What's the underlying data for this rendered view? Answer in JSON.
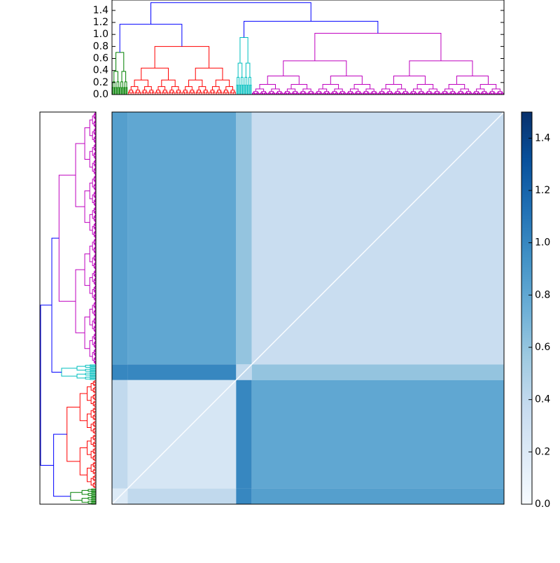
{
  "chart_data": {
    "type": "clustermap",
    "dendrogram": {
      "ylim": [
        0,
        1.55
      ],
      "yticks": [
        {
          "value": 0,
          "label": "0.0"
        },
        {
          "value": 0.2,
          "label": "0.2"
        },
        {
          "value": 0.4,
          "label": "0.4"
        },
        {
          "value": 0.6,
          "label": "0.6"
        },
        {
          "value": 0.8,
          "label": "0.8"
        },
        {
          "value": 1,
          "label": "1.0"
        },
        {
          "value": 1.2,
          "label": "1.2"
        },
        {
          "value": 1.4,
          "label": "1.4"
        }
      ],
      "link_color": "#0000ff",
      "clusters": [
        {
          "size": 12,
          "height": 0.7,
          "color": "#008000"
        },
        {
          "size": 83,
          "height": 0.8,
          "color": "#ff0000"
        },
        {
          "size": 12,
          "height": 0.95,
          "color": "#00bfbf"
        },
        {
          "size": 193,
          "height": 1.02,
          "color": "#bf00bf"
        }
      ],
      "links": [
        {
          "children": [
            0,
            1
          ],
          "height": 1.17
        },
        {
          "children": [
            2,
            3
          ],
          "height": 1.22
        },
        {
          "children": [
            4,
            5
          ],
          "height": 1.53
        }
      ]
    },
    "matrix": [
      [
        0.2,
        0.4,
        1.0,
        0.85
      ],
      [
        0.4,
        0.25,
        1.0,
        0.8
      ],
      [
        1.0,
        1.0,
        0.4,
        0.6
      ],
      [
        0.85,
        0.8,
        0.6,
        0.35
      ]
    ],
    "clim": [
      0,
      1.5
    ],
    "cticks": [
      {
        "value": 0,
        "label": "0.0"
      },
      {
        "value": 0.2,
        "label": "0.2"
      },
      {
        "value": 0.4,
        "label": "0.4"
      },
      {
        "value": 0.6,
        "label": "0.6"
      },
      {
        "value": 0.8,
        "label": "0.8"
      },
      {
        "value": 1,
        "label": "1.0"
      },
      {
        "value": 1.2,
        "label": "1.2"
      },
      {
        "value": 1.4,
        "label": "1.4"
      }
    ]
  }
}
